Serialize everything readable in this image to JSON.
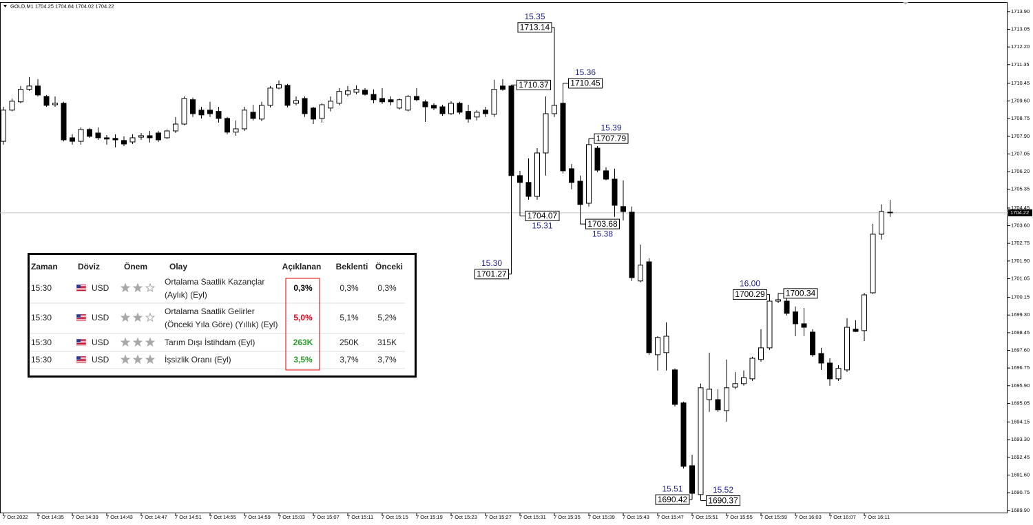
{
  "chart_data": {
    "type": "candlestick",
    "title": "GOLD,M1 1704.25 1704.84 1704.02 1704.22",
    "categories": [
      "7 Oct 2022",
      null,
      null,
      null,
      "7 Oct 14:35",
      null,
      null,
      null,
      "7 Oct 14:39",
      null,
      null,
      null,
      "7 Oct 14:43",
      null,
      null,
      null,
      "7 Oct 14:47",
      null,
      null,
      null,
      "7 Oct 14:51",
      null,
      null,
      null,
      "7 Oct 14:55",
      null,
      null,
      null,
      "7 Oct 14:59",
      null,
      null,
      null,
      "7 Oct 15:03",
      null,
      null,
      null,
      "7 Oct 15:07",
      null,
      null,
      null,
      "7 Oct 15:11",
      null,
      null,
      null,
      "7 Oct 15:15",
      null,
      null,
      null,
      "7 Oct 15:19",
      null,
      null,
      null,
      "7 Oct 15:23",
      null,
      null,
      null,
      "7 Oct 15:27",
      null,
      null,
      null,
      "7 Oct 15:31",
      null,
      null,
      null,
      "7 Oct 15:35",
      null,
      null,
      null,
      "7 Oct 15:39",
      null,
      null,
      null,
      "7 Oct 15:43",
      null,
      null,
      null,
      "7 Oct 15:47",
      null,
      null,
      null,
      "7 Oct 15:51",
      null,
      null,
      null,
      "7 Oct 15:55",
      null,
      null,
      null,
      "7 Oct 15:59",
      null,
      null,
      null,
      "7 Oct 16:03",
      null,
      null,
      null,
      "7 Oct 16:07",
      null,
      null,
      null,
      "7 Oct 16:11",
      null,
      null,
      null
    ],
    "open": [
      1707.66,
      1709.16,
      1709.56,
      1710.16,
      1710.32,
      1709.82,
      1709.42,
      1709.49,
      1707.83,
      1707.66,
      1708.23,
      1708.06,
      1707.83,
      1707.8,
      1707.7,
      1707.63,
      1707.86,
      1707.93,
      1708.06,
      1707.83,
      1708.16,
      1708.49,
      1709.66,
      1709.16,
      1709.16,
      1709.1,
      1708.76,
      1708.1,
      1708.26,
      1709.06,
      1708.73,
      1709.39,
      1710.22,
      1710.35,
      1709.49,
      1709.72,
      1709.26,
      1708.76,
      1709.26,
      1709.49,
      1709.92,
      1710.02,
      1710.12,
      1709.92,
      1709.72,
      1709.66,
      1709.26,
      1709.16,
      1709.82,
      1709.56,
      1709.39,
      1709.32,
      1708.99,
      1709.49,
      1709.1,
      1708.83,
      1709.16,
      1708.96,
      1710.32,
      1710.32,
      1706.01,
      1705.68,
      1705.01,
      1707.1,
      1708.99,
      1709.49,
      1706.34,
      1705.74,
      1704.68,
      1707.33,
      1706.24,
      1705.84,
      1704.52,
      1704.25,
      1700.94,
      1701.86,
      1697.39,
      1697.49,
      1696.66,
      1695.07,
      1692.05,
      1690.66,
      1695.23,
      1695.23,
      1694.7,
      1695.83,
      1696.0,
      1696.23,
      1697.16,
      1697.72,
      1699.97,
      1699.97,
      1699.45,
      1698.88,
      1698.48,
      1697.45,
      1696.99,
      1696.23,
      1696.66,
      1698.62,
      1698.55,
      1700.37,
      1703.19,
      1704.25
    ],
    "high": [
      1709.32,
      1709.72,
      1710.32,
      1710.75,
      1710.65,
      1709.89,
      1709.82,
      1709.56,
      1708.0,
      1708.33,
      1708.3,
      1708.33,
      1707.96,
      1708.0,
      1707.9,
      1708.0,
      1708.06,
      1708.16,
      1708.16,
      1708.23,
      1708.83,
      1709.82,
      1709.76,
      1709.32,
      1709.56,
      1709.32,
      1708.83,
      1708.66,
      1709.32,
      1709.42,
      1709.56,
      1710.32,
      1710.59,
      1710.42,
      1709.82,
      1709.82,
      1709.32,
      1709.49,
      1709.82,
      1710.22,
      1710.32,
      1710.35,
      1710.22,
      1710.16,
      1710.22,
      1709.82,
      1709.72,
      1709.89,
      1710.22,
      1709.66,
      1709.49,
      1709.42,
      1709.59,
      1709.56,
      1709.42,
      1709.16,
      1709.32,
      1710.62,
      1710.65,
      1710.37,
      1706.24,
      1706.84,
      1707.33,
      1709.82,
      1713.14,
      1710.45,
      1706.57,
      1706.01,
      1707.79,
      1707.43,
      1706.41,
      1706.34,
      1705.78,
      1704.52,
      1702.69,
      1702.03,
      1698.28,
      1698.95,
      1696.73,
      1695.13,
      1692.58,
      1696.0,
      1697.49,
      1695.73,
      1697.16,
      1696.56,
      1696.63,
      1697.29,
      1698.62,
      1700.29,
      1700.34,
      1700.27,
      1699.71,
      1699.64,
      1698.62,
      1697.72,
      1697.22,
      1696.89,
      1699.15,
      1699.05,
      1700.37,
      1703.69,
      1704.62,
      1704.84
    ],
    "low": [
      1707.5,
      1709.1,
      1709.49,
      1710.09,
      1709.82,
      1709.32,
      1709.32,
      1707.66,
      1707.5,
      1707.5,
      1707.83,
      1707.73,
      1707.5,
      1707.37,
      1707.43,
      1707.53,
      1707.73,
      1707.6,
      1707.63,
      1707.77,
      1708.06,
      1708.43,
      1708.83,
      1708.76,
      1708.83,
      1708.56,
      1708.0,
      1707.93,
      1708.16,
      1708.66,
      1708.63,
      1709.29,
      1710.16,
      1709.29,
      1709.39,
      1708.83,
      1708.49,
      1708.56,
      1709.1,
      1709.39,
      1709.82,
      1709.92,
      1709.86,
      1709.49,
      1709.46,
      1709.39,
      1709.19,
      1709.1,
      1709.59,
      1708.59,
      1709.16,
      1708.89,
      1708.93,
      1708.96,
      1708.56,
      1708.66,
      1708.83,
      1708.83,
      1710.09,
      1701.27,
      1704.07,
      1704.85,
      1704.85,
      1706.01,
      1708.83,
      1706.11,
      1705.35,
      1703.68,
      1704.52,
      1706.18,
      1705.78,
      1704.02,
      1703.85,
      1700.94,
      1700.87,
      1697.39,
      1696.63,
      1696.63,
      1694.9,
      1691.92,
      1690.42,
      1690.37,
      1694.64,
      1694.64,
      1694.17,
      1695.73,
      1695.9,
      1696.13,
      1697.06,
      1697.62,
      1699.87,
      1699.28,
      1698.28,
      1698.28,
      1697.29,
      1696.66,
      1695.9,
      1696.13,
      1696.56,
      1698.48,
      1698.05,
      1700.31,
      1702.93,
      1704.02
    ],
    "close": [
      1709.16,
      1709.59,
      1710.16,
      1710.32,
      1709.89,
      1709.39,
      1709.49,
      1707.73,
      1707.66,
      1708.23,
      1707.9,
      1707.83,
      1707.77,
      1707.73,
      1707.53,
      1707.83,
      1707.93,
      1707.83,
      1707.73,
      1708.16,
      1708.49,
      1709.72,
      1708.99,
      1708.93,
      1708.99,
      1708.76,
      1708.1,
      1708.26,
      1709.16,
      1708.76,
      1709.39,
      1710.22,
      1710.39,
      1709.39,
      1709.62,
      1708.99,
      1708.73,
      1709.42,
      1709.59,
      1710.06,
      1710.09,
      1710.16,
      1709.92,
      1709.66,
      1709.56,
      1709.56,
      1709.66,
      1709.82,
      1709.66,
      1709.32,
      1709.26,
      1708.99,
      1709.49,
      1709.06,
      1708.73,
      1709.06,
      1708.99,
      1710.16,
      1710.16,
      1706.01,
      1705.68,
      1705.01,
      1707.1,
      1708.99,
      1709.39,
      1706.24,
      1705.68,
      1704.62,
      1707.5,
      1706.27,
      1705.84,
      1704.58,
      1704.28,
      1701.1,
      1701.7,
      1697.49,
      1698.22,
      1698.28,
      1695.0,
      1692.02,
      1690.72,
      1695.8,
      1695.73,
      1694.74,
      1695.8,
      1696.0,
      1696.29,
      1697.22,
      1697.72,
      1699.97,
      1700.04,
      1699.38,
      1698.88,
      1698.71,
      1697.39,
      1696.99,
      1696.23,
      1696.73,
      1698.71,
      1698.51,
      1700.27,
      1703.19,
      1704.28,
      1704.22
    ],
    "ylim": [
      1689.76,
      1714.36
    ],
    "yticks": [
      {
        "value": 1713.9,
        "label": "1713.90"
      },
      1713.05,
      {
        "value": 1712.2,
        "label": "1712.20"
      },
      1711.35,
      1710.45,
      {
        "value": 1709.6,
        "label": "1709.60"
      },
      1708.75,
      {
        "value": 1707.9,
        "label": "1707.90"
      },
      1707.05,
      {
        "value": 1706.2,
        "label": "1706.20"
      },
      1705.35,
      1704.45,
      {
        "value": 1703.6,
        "label": "1703.60"
      },
      1702.75,
      {
        "value": 1701.9,
        "label": "1701.90"
      },
      1701.05,
      1700.15,
      {
        "value": 1699.3,
        "label": "1699.30"
      },
      1698.45,
      {
        "value": 1697.6,
        "label": "1697.60"
      },
      1696.75,
      {
        "value": 1695.9,
        "label": "1695.90"
      },
      1695.05,
      1694.15,
      {
        "value": 1693.3,
        "label": "1693.30"
      },
      1692.45,
      {
        "value": 1691.6,
        "label": "1691.60"
      },
      1690.75,
      {
        "value": 1689.9,
        "label": "1689.90"
      }
    ],
    "grid": false,
    "bull_color": "#ffffff",
    "bear_color": "#000000",
    "current_line_color": "#c0c0c0",
    "annotation_time_color": "#1f1f8f",
    "annotations": [
      {
        "time": "15.35",
        "price": 1713.14,
        "side": "left",
        "time_pos": "above"
      },
      {
        "price": 1710.37,
        "side": "right"
      },
      {
        "time": "15.36",
        "price": 1710.45,
        "side": "right",
        "time_pos": "above"
      },
      {
        "time": "15.39",
        "price": 1707.79,
        "side": "right",
        "time_pos": "above"
      },
      {
        "time": "15.31",
        "price": 1704.07,
        "side": "right",
        "time_pos": "below"
      },
      {
        "time": "15.38",
        "price": 1703.68,
        "side": "right",
        "time_pos": "below"
      },
      {
        "time": "15.30",
        "price": 1701.27,
        "side": "left",
        "time_pos": "above"
      },
      {
        "time": "16.00",
        "price": 1700.29,
        "side": "left",
        "time_pos": "above"
      },
      {
        "price": 1700.34,
        "side": "right"
      },
      {
        "time": "15.51",
        "price": 1690.42,
        "side": "left",
        "time_pos": "above"
      },
      {
        "time": "15.52",
        "price": 1690.37,
        "side": "right",
        "time_pos": "above"
      }
    ]
  },
  "calendar": {
    "headers": [
      "Zaman",
      "Döviz",
      "Önem",
      "Olay",
      "Açıklanan",
      "Beklenti",
      "Önceki"
    ],
    "rows": [
      {
        "time": "15:30",
        "currency": "USD",
        "importance": 2,
        "event": [
          "Ortalama Saatlik Kazançlar",
          "(Aylık) (Eyl)"
        ],
        "actual": "0,3%",
        "actual_color": "#000000",
        "forecast": "0,3%",
        "previous": "0,3%"
      },
      {
        "time": "15:30",
        "currency": "USD",
        "importance": 2,
        "event": [
          "Ortalama Saatlik Gelirler",
          "(Önceki Yıla Göre) (Yıllık) (Eyl)"
        ],
        "actual": "5,0%",
        "actual_color": "#e3001b",
        "forecast": "5,1%",
        "previous": "5,2%"
      },
      {
        "time": "15:30",
        "currency": "USD",
        "importance": 3,
        "event": [
          "Tarım Dışı İstihdam (Eyl)"
        ],
        "actual": "263K",
        "actual_color": "#2a9d2a",
        "forecast": "250K",
        "previous": "315K"
      },
      {
        "time": "15:30",
        "currency": "USD",
        "importance": 3,
        "event": [
          "İşsizlik Oranı (Eyl)"
        ],
        "actual": "3,5%",
        "actual_color": "#2a9d2a",
        "forecast": "3,7%",
        "previous": "3,7%"
      }
    ]
  }
}
